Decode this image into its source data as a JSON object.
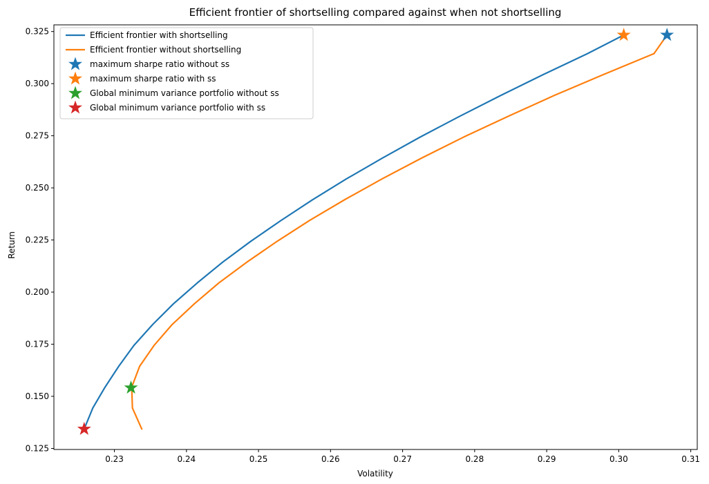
{
  "chart_data": {
    "type": "line",
    "title": "Efficient frontier of shortselling compared against when not shortselling",
    "xlabel": "Volatility",
    "ylabel": "Return",
    "xlim": [
      0.2216,
      0.3109
    ],
    "ylim": [
      0.1245,
      0.3282
    ],
    "xticks": [
      0.23,
      0.24,
      0.25,
      0.26,
      0.27,
      0.28,
      0.29,
      0.3,
      0.31
    ],
    "xtick_labels": [
      "0.23",
      "0.24",
      "0.25",
      "0.26",
      "0.27",
      "0.28",
      "0.29",
      "0.30",
      "0.31"
    ],
    "yticks": [
      0.125,
      0.15,
      0.175,
      0.2,
      0.225,
      0.25,
      0.275,
      0.3,
      0.325
    ],
    "ytick_labels": [
      "0.125",
      "0.150",
      "0.175",
      "0.200",
      "0.225",
      "0.250",
      "0.275",
      "0.300",
      "0.325"
    ],
    "grid": false,
    "legend_position": "top-left",
    "series": [
      {
        "name": "Efficient frontier with shortselling",
        "kind": "line",
        "color": "#1f77b4",
        "x": [
          0.2258,
          0.227,
          0.2287,
          0.2306,
          0.2327,
          0.2353,
          0.2382,
          0.2415,
          0.245,
          0.2489,
          0.2531,
          0.2575,
          0.2622,
          0.2672,
          0.2724,
          0.2779,
          0.2836,
          0.2895,
          0.2956,
          0.3007
        ],
        "y": [
          0.1343,
          0.1444,
          0.1544,
          0.1644,
          0.1744,
          0.1844,
          0.1944,
          0.2044,
          0.2143,
          0.2243,
          0.2343,
          0.2443,
          0.2543,
          0.2643,
          0.2743,
          0.2843,
          0.2943,
          0.3043,
          0.3143,
          0.3233
        ]
      },
      {
        "name": "Efficient frontier without shortselling",
        "kind": "line",
        "color": "#ff7f0e",
        "x": [
          0.2338,
          0.2325,
          0.2324,
          0.2335,
          0.2355,
          0.238,
          0.2411,
          0.2445,
          0.2484,
          0.2526,
          0.2571,
          0.262,
          0.2672,
          0.2727,
          0.2785,
          0.2847,
          0.2911,
          0.2979,
          0.3049
        ],
        "y": [
          0.1343,
          0.1444,
          0.1544,
          0.1644,
          0.1744,
          0.1844,
          0.1944,
          0.2044,
          0.2144,
          0.2244,
          0.2344,
          0.2444,
          0.2544,
          0.2644,
          0.2744,
          0.2844,
          0.2944,
          0.3044,
          0.3144
        ]
      }
    ],
    "tail_segment": {
      "series_index": 1,
      "x": [
        0.3049,
        0.3067
      ],
      "y": [
        0.3144,
        0.3233
      ]
    },
    "markers": [
      {
        "name": "maximum sharpe ratio without ss",
        "color": "#1f77b4",
        "x": 0.3067,
        "y": 0.3233
      },
      {
        "name": "maximum sharpe ratio with ss",
        "color": "#ff7f0e",
        "x": 0.3007,
        "y": 0.3233
      },
      {
        "name": "Global minimum variance portfolio without ss",
        "color": "#2ca02c",
        "x": 0.2323,
        "y": 0.1541
      },
      {
        "name": "Global minimum variance portfolio with ss",
        "color": "#d62728",
        "x": 0.2258,
        "y": 0.1343
      }
    ]
  }
}
